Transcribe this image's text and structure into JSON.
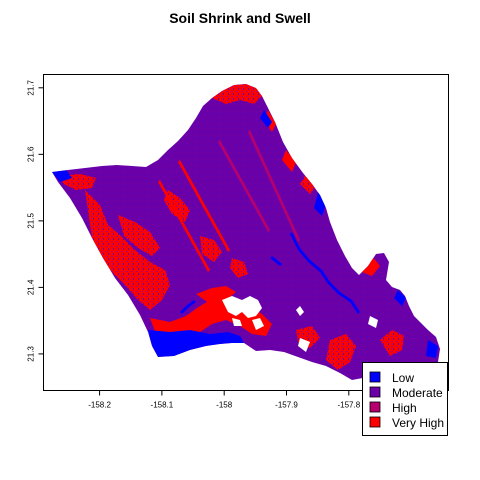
{
  "title": "Soil Shrink and Swell",
  "colors": {
    "low": "#0000ff",
    "moderate": "#6a00a8",
    "high": "#b5006e",
    "very_high": "#ff0000",
    "frame": "#000000",
    "background": "#ffffff"
  },
  "chart_data": {
    "type": "map",
    "title": "Soil Shrink and Swell",
    "xlabel": "",
    "ylabel": "",
    "xlim": [
      -158.29,
      -157.64
    ],
    "ylim": [
      21.245,
      21.72
    ],
    "x_ticks": [
      {
        "value": -158.2,
        "label": "-158.2"
      },
      {
        "value": -158.1,
        "label": "-158.1"
      },
      {
        "value": -158.0,
        "label": "-158"
      },
      {
        "value": -157.9,
        "label": "-157.9"
      },
      {
        "value": -157.8,
        "label": "-157.8"
      }
    ],
    "y_ticks": [
      {
        "value": 21.3,
        "label": "21.3"
      },
      {
        "value": 21.4,
        "label": "21.4"
      },
      {
        "value": 21.5,
        "label": "21.5"
      },
      {
        "value": 21.6,
        "label": "21.6"
      },
      {
        "value": 21.7,
        "label": "21.7"
      }
    ],
    "legend": {
      "position": "bottom-right",
      "entries": [
        {
          "label": "Low",
          "color": "#0000ff"
        },
        {
          "label": "Moderate",
          "color": "#6a00a8"
        },
        {
          "label": "High",
          "color": "#b5006e"
        },
        {
          "label": "Very High",
          "color": "#ff0000"
        }
      ]
    },
    "grid": false
  }
}
